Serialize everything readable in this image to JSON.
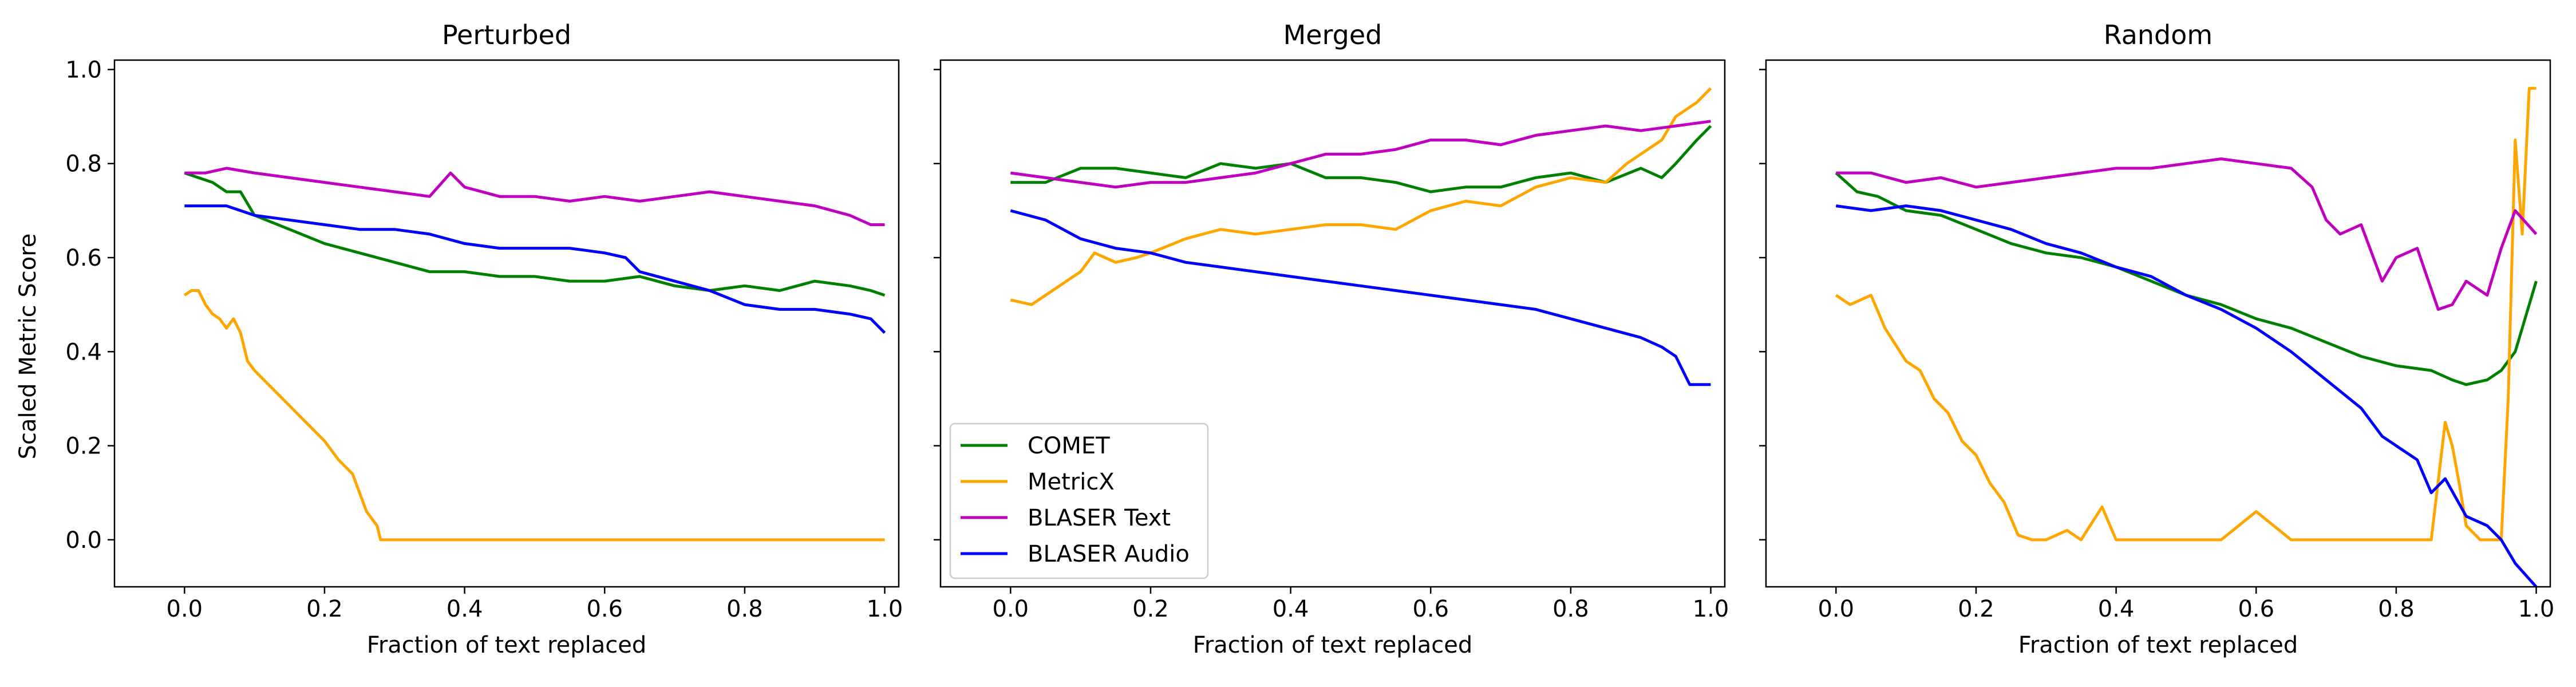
{
  "figure": {
    "shared_ylabel": "Scaled Metric Score",
    "xlabel": "Fraction of text replaced"
  },
  "legend": {
    "location": "lower left of middle panel",
    "entries": [
      {
        "name": "COMET",
        "color": "#008000"
      },
      {
        "name": "MetricX",
        "color": "#FFA500"
      },
      {
        "name": "BLASER Text",
        "color": "#BF00BF"
      },
      {
        "name": "BLASER Audio",
        "color": "#0000FF"
      }
    ]
  },
  "chart_data": [
    {
      "type": "line",
      "title": "Perturbed",
      "xlabel": "Fraction of text replaced",
      "ylabel": "Scaled Metric Score",
      "xlim": [
        -0.1,
        1.02
      ],
      "ylim": [
        -0.1,
        1.02
      ],
      "xticks": [
        "0.0",
        "0.2",
        "0.4",
        "0.6",
        "0.8",
        "1.0"
      ],
      "yticks": [
        "0.0",
        "0.2",
        "0.4",
        "0.6",
        "0.8",
        "1.0"
      ],
      "grid": false,
      "series": [
        {
          "name": "COMET",
          "color": "#008000",
          "x": [
            0,
            0.02,
            0.04,
            0.06,
            0.08,
            0.1,
            0.15,
            0.2,
            0.25,
            0.3,
            0.35,
            0.4,
            0.45,
            0.5,
            0.55,
            0.6,
            0.65,
            0.7,
            0.75,
            0.8,
            0.85,
            0.9,
            0.95,
            0.98,
            1.0
          ],
          "y": [
            0.78,
            0.77,
            0.76,
            0.74,
            0.74,
            0.69,
            0.66,
            0.63,
            0.61,
            0.59,
            0.57,
            0.57,
            0.56,
            0.56,
            0.55,
            0.55,
            0.56,
            0.54,
            0.53,
            0.54,
            0.53,
            0.55,
            0.54,
            0.53,
            0.52
          ]
        },
        {
          "name": "MetricX",
          "color": "#FFA500",
          "x": [
            0,
            0.01,
            0.02,
            0.03,
            0.04,
            0.05,
            0.06,
            0.07,
            0.08,
            0.09,
            0.1,
            0.12,
            0.14,
            0.16,
            0.18,
            0.2,
            0.22,
            0.24,
            0.26,
            0.275,
            0.28,
            0.4,
            0.6,
            0.8,
            1.0
          ],
          "y": [
            0.52,
            0.53,
            0.53,
            0.5,
            0.48,
            0.47,
            0.45,
            0.47,
            0.44,
            0.38,
            0.36,
            0.33,
            0.3,
            0.27,
            0.24,
            0.21,
            0.17,
            0.14,
            0.06,
            0.03,
            0.0,
            0.0,
            0.0,
            0.0,
            0.0
          ]
        },
        {
          "name": "BLASER Text",
          "color": "#BF00BF",
          "x": [
            0,
            0.03,
            0.06,
            0.1,
            0.15,
            0.2,
            0.25,
            0.3,
            0.35,
            0.38,
            0.4,
            0.45,
            0.5,
            0.55,
            0.6,
            0.65,
            0.7,
            0.75,
            0.8,
            0.85,
            0.9,
            0.95,
            0.98,
            1.0
          ],
          "y": [
            0.78,
            0.78,
            0.79,
            0.78,
            0.77,
            0.76,
            0.75,
            0.74,
            0.73,
            0.78,
            0.75,
            0.73,
            0.73,
            0.72,
            0.73,
            0.72,
            0.73,
            0.74,
            0.73,
            0.72,
            0.71,
            0.69,
            0.67,
            0.67
          ]
        },
        {
          "name": "BLASER Audio",
          "color": "#0000FF",
          "x": [
            0,
            0.03,
            0.06,
            0.1,
            0.15,
            0.2,
            0.25,
            0.3,
            0.35,
            0.4,
            0.45,
            0.5,
            0.55,
            0.6,
            0.63,
            0.65,
            0.7,
            0.75,
            0.8,
            0.85,
            0.9,
            0.95,
            0.98,
            1.0
          ],
          "y": [
            0.71,
            0.71,
            0.71,
            0.69,
            0.68,
            0.67,
            0.66,
            0.66,
            0.65,
            0.63,
            0.62,
            0.62,
            0.62,
            0.61,
            0.6,
            0.57,
            0.55,
            0.53,
            0.5,
            0.49,
            0.49,
            0.48,
            0.47,
            0.44
          ]
        }
      ]
    },
    {
      "type": "line",
      "title": "Merged",
      "xlabel": "Fraction of text replaced",
      "ylabel": "",
      "xlim": [
        -0.1,
        1.02
      ],
      "ylim": [
        -0.1,
        1.02
      ],
      "xticks": [
        "0.0",
        "0.2",
        "0.4",
        "0.6",
        "0.8",
        "1.0"
      ],
      "yticks": [],
      "grid": false,
      "series": [
        {
          "name": "COMET",
          "color": "#008000",
          "x": [
            0,
            0.05,
            0.1,
            0.15,
            0.2,
            0.25,
            0.3,
            0.35,
            0.4,
            0.45,
            0.5,
            0.55,
            0.6,
            0.65,
            0.7,
            0.75,
            0.8,
            0.85,
            0.9,
            0.93,
            0.95,
            0.98,
            1.0
          ],
          "y": [
            0.76,
            0.76,
            0.79,
            0.79,
            0.78,
            0.77,
            0.8,
            0.79,
            0.8,
            0.77,
            0.77,
            0.76,
            0.74,
            0.75,
            0.75,
            0.77,
            0.78,
            0.76,
            0.79,
            0.77,
            0.8,
            0.85,
            0.88
          ]
        },
        {
          "name": "MetricX",
          "color": "#FFA500",
          "x": [
            0,
            0.03,
            0.06,
            0.1,
            0.12,
            0.15,
            0.18,
            0.2,
            0.25,
            0.3,
            0.35,
            0.4,
            0.45,
            0.5,
            0.55,
            0.6,
            0.65,
            0.7,
            0.75,
            0.8,
            0.85,
            0.88,
            0.9,
            0.93,
            0.95,
            0.98,
            1.0
          ],
          "y": [
            0.51,
            0.5,
            0.53,
            0.57,
            0.61,
            0.59,
            0.6,
            0.61,
            0.64,
            0.66,
            0.65,
            0.66,
            0.67,
            0.67,
            0.66,
            0.7,
            0.72,
            0.71,
            0.75,
            0.77,
            0.76,
            0.8,
            0.82,
            0.85,
            0.9,
            0.93,
            0.96
          ]
        },
        {
          "name": "BLASER Text",
          "color": "#BF00BF",
          "x": [
            0,
            0.05,
            0.1,
            0.15,
            0.2,
            0.25,
            0.3,
            0.35,
            0.4,
            0.45,
            0.5,
            0.55,
            0.6,
            0.65,
            0.7,
            0.75,
            0.8,
            0.85,
            0.9,
            0.95,
            1.0
          ],
          "y": [
            0.78,
            0.77,
            0.76,
            0.75,
            0.76,
            0.76,
            0.77,
            0.78,
            0.8,
            0.82,
            0.82,
            0.83,
            0.85,
            0.85,
            0.84,
            0.86,
            0.87,
            0.88,
            0.87,
            0.88,
            0.89
          ]
        },
        {
          "name": "BLASER Audio",
          "color": "#0000FF",
          "x": [
            0,
            0.05,
            0.1,
            0.15,
            0.2,
            0.25,
            0.3,
            0.35,
            0.4,
            0.45,
            0.5,
            0.55,
            0.6,
            0.65,
            0.7,
            0.75,
            0.8,
            0.85,
            0.9,
            0.93,
            0.95,
            0.97,
            1.0
          ],
          "y": [
            0.7,
            0.68,
            0.64,
            0.62,
            0.61,
            0.59,
            0.58,
            0.57,
            0.56,
            0.55,
            0.54,
            0.53,
            0.52,
            0.51,
            0.5,
            0.49,
            0.47,
            0.45,
            0.43,
            0.41,
            0.39,
            0.33,
            0.33
          ]
        }
      ]
    },
    {
      "type": "line",
      "title": "Random",
      "xlabel": "Fraction of text replaced",
      "ylabel": "",
      "xlim": [
        -0.1,
        1.02
      ],
      "ylim": [
        -0.1,
        1.02
      ],
      "xticks": [
        "0.0",
        "0.2",
        "0.4",
        "0.6",
        "0.8",
        "1.0"
      ],
      "yticks": [],
      "grid": false,
      "series": [
        {
          "name": "COMET",
          "color": "#008000",
          "x": [
            0,
            0.03,
            0.06,
            0.1,
            0.15,
            0.2,
            0.25,
            0.3,
            0.35,
            0.4,
            0.45,
            0.5,
            0.55,
            0.6,
            0.65,
            0.7,
            0.75,
            0.8,
            0.85,
            0.88,
            0.9,
            0.93,
            0.95,
            0.97,
            1.0
          ],
          "y": [
            0.78,
            0.74,
            0.73,
            0.7,
            0.69,
            0.66,
            0.63,
            0.61,
            0.6,
            0.58,
            0.55,
            0.52,
            0.5,
            0.47,
            0.45,
            0.42,
            0.39,
            0.37,
            0.36,
            0.34,
            0.33,
            0.34,
            0.36,
            0.4,
            0.55
          ]
        },
        {
          "name": "MetricX",
          "color": "#FFA500",
          "x": [
            0,
            0.02,
            0.05,
            0.07,
            0.1,
            0.12,
            0.14,
            0.16,
            0.18,
            0.2,
            0.22,
            0.24,
            0.26,
            0.28,
            0.3,
            0.33,
            0.35,
            0.38,
            0.4,
            0.5,
            0.55,
            0.6,
            0.65,
            0.7,
            0.8,
            0.85,
            0.87,
            0.88,
            0.89,
            0.9,
            0.92,
            0.95,
            0.96,
            0.97,
            0.98,
            0.99,
            1.0
          ],
          "y": [
            0.52,
            0.5,
            0.52,
            0.45,
            0.38,
            0.36,
            0.3,
            0.27,
            0.21,
            0.18,
            0.12,
            0.08,
            0.01,
            0.0,
            0.0,
            0.02,
            0.0,
            0.07,
            0.0,
            0.0,
            0.0,
            0.06,
            0.0,
            0.0,
            0.0,
            0.0,
            0.25,
            0.2,
            0.12,
            0.03,
            0.0,
            0.0,
            0.3,
            0.85,
            0.65,
            0.96,
            0.96
          ]
        },
        {
          "name": "BLASER Text",
          "color": "#BF00BF",
          "x": [
            0,
            0.05,
            0.1,
            0.15,
            0.2,
            0.25,
            0.3,
            0.35,
            0.4,
            0.45,
            0.5,
            0.55,
            0.6,
            0.65,
            0.68,
            0.7,
            0.72,
            0.75,
            0.78,
            0.8,
            0.83,
            0.86,
            0.88,
            0.9,
            0.93,
            0.95,
            0.97,
            1.0
          ],
          "y": [
            0.78,
            0.78,
            0.76,
            0.77,
            0.75,
            0.76,
            0.77,
            0.78,
            0.79,
            0.79,
            0.8,
            0.81,
            0.8,
            0.79,
            0.75,
            0.68,
            0.65,
            0.67,
            0.55,
            0.6,
            0.62,
            0.49,
            0.5,
            0.55,
            0.52,
            0.62,
            0.7,
            0.65
          ]
        },
        {
          "name": "BLASER Audio",
          "color": "#0000FF",
          "x": [
            0,
            0.05,
            0.1,
            0.15,
            0.2,
            0.25,
            0.3,
            0.35,
            0.4,
            0.45,
            0.5,
            0.55,
            0.6,
            0.65,
            0.7,
            0.75,
            0.78,
            0.8,
            0.83,
            0.85,
            0.87,
            0.9,
            0.93,
            0.95,
            0.97,
            1.0
          ],
          "y": [
            0.71,
            0.7,
            0.71,
            0.7,
            0.68,
            0.66,
            0.63,
            0.61,
            0.58,
            0.56,
            0.52,
            0.49,
            0.45,
            0.4,
            0.34,
            0.28,
            0.22,
            0.2,
            0.17,
            0.1,
            0.13,
            0.05,
            0.03,
            0.0,
            -0.05,
            -0.1
          ]
        }
      ]
    }
  ]
}
